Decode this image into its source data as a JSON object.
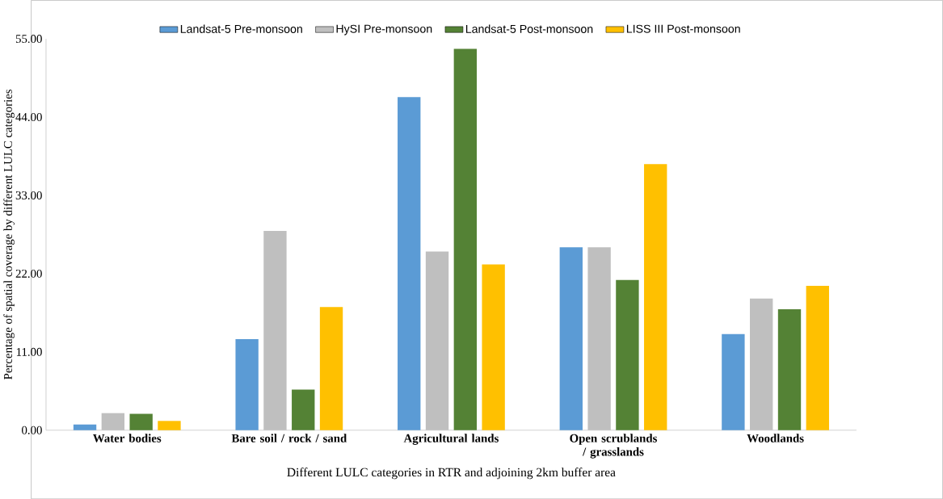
{
  "chart_data": {
    "type": "bar",
    "xlabel": "Different LULC categories in RTR and adjoining 2km buffer area",
    "ylabel": "Percentage of spatial coverage by different LULC categories",
    "categories": [
      "Water bodies",
      "Bare soil / rock / sand",
      "Agricultural lands",
      "Open scrublands / grasslands",
      "Woodlands"
    ],
    "series": [
      {
        "name": "Landsat-5 Pre-monsoon",
        "color": "#5b9bd5",
        "values": [
          0.8,
          12.8,
          46.8,
          25.7,
          13.5
        ]
      },
      {
        "name": "HySI Pre-monsoon",
        "color": "#bfbfbf",
        "values": [
          2.4,
          28.0,
          25.1,
          25.7,
          18.5
        ]
      },
      {
        "name": "Landsat-5 Post-monsoon",
        "color": "#548235",
        "values": [
          2.3,
          5.7,
          53.6,
          21.1,
          17.0
        ]
      },
      {
        "name": "LISS III Post-monsoon",
        "color": "#ffc000",
        "values": [
          1.3,
          17.3,
          23.3,
          37.4,
          20.3
        ]
      }
    ],
    "ylim": [
      0,
      55
    ],
    "yticks": [
      {
        "value": 0,
        "label": "0.00"
      },
      {
        "value": 11,
        "label": "11.00"
      },
      {
        "value": 22,
        "label": "22.00"
      },
      {
        "value": 33,
        "label": "33.00"
      },
      {
        "value": 44,
        "label": "44.00"
      },
      {
        "value": 55,
        "label": "55.00"
      }
    ],
    "legend": "top",
    "grid": false
  }
}
